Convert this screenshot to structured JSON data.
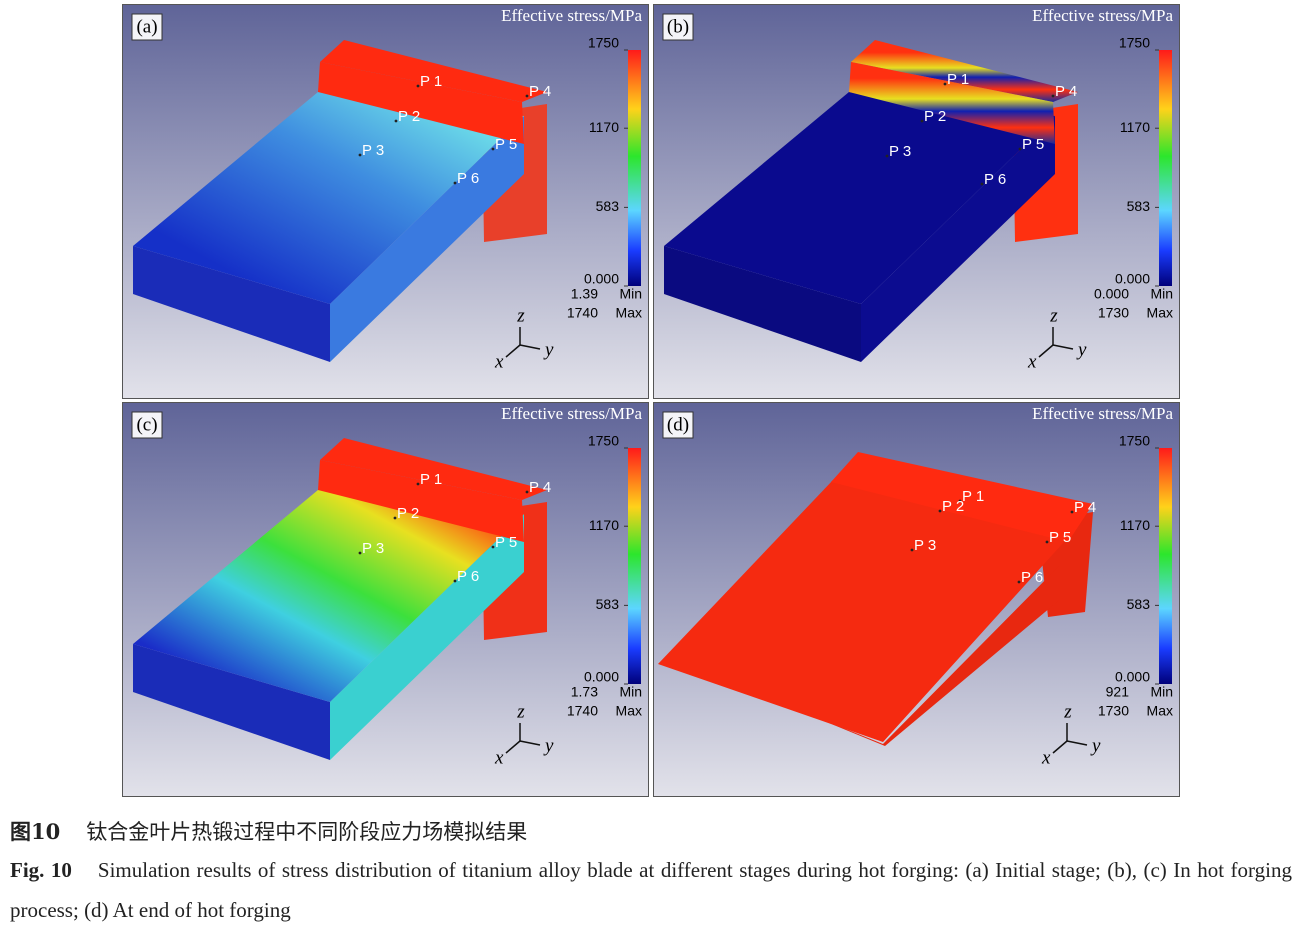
{
  "figure": {
    "legend_title": "Effective stress/MPa",
    "clim": [
      0,
      1750
    ],
    "scale_ticks": [
      1750,
      1170,
      583,
      {
        "value": 0,
        "label": "0.000"
      }
    ],
    "min_label": "Min",
    "max_label": "Max",
    "axis_letters": [
      "z",
      "x",
      "y"
    ],
    "points": [
      "P 1",
      "P 2",
      "P 3",
      "P 4",
      "P 5",
      "P 6"
    ],
    "panels": [
      {
        "label": "(a)",
        "min": "1.39",
        "max": "1740"
      },
      {
        "label": "(b)",
        "min": "0.000",
        "max": "1730"
      },
      {
        "label": "(c)",
        "min": "1.73",
        "max": "1740"
      },
      {
        "label": "(d)",
        "min": "921",
        "max": "1730"
      }
    ]
  },
  "caption": {
    "cn_number": "图10",
    "cn_text": "钛合金叶片热锻过程中不同阶段应力场模拟结果",
    "en_number": "Fig. 10",
    "en_text": "Simulation results of stress distribution of titanium alloy blade at different stages during hot forging: (a) Initial stage; (b), (c) In hot forging process; (d) At end of hot forging"
  }
}
